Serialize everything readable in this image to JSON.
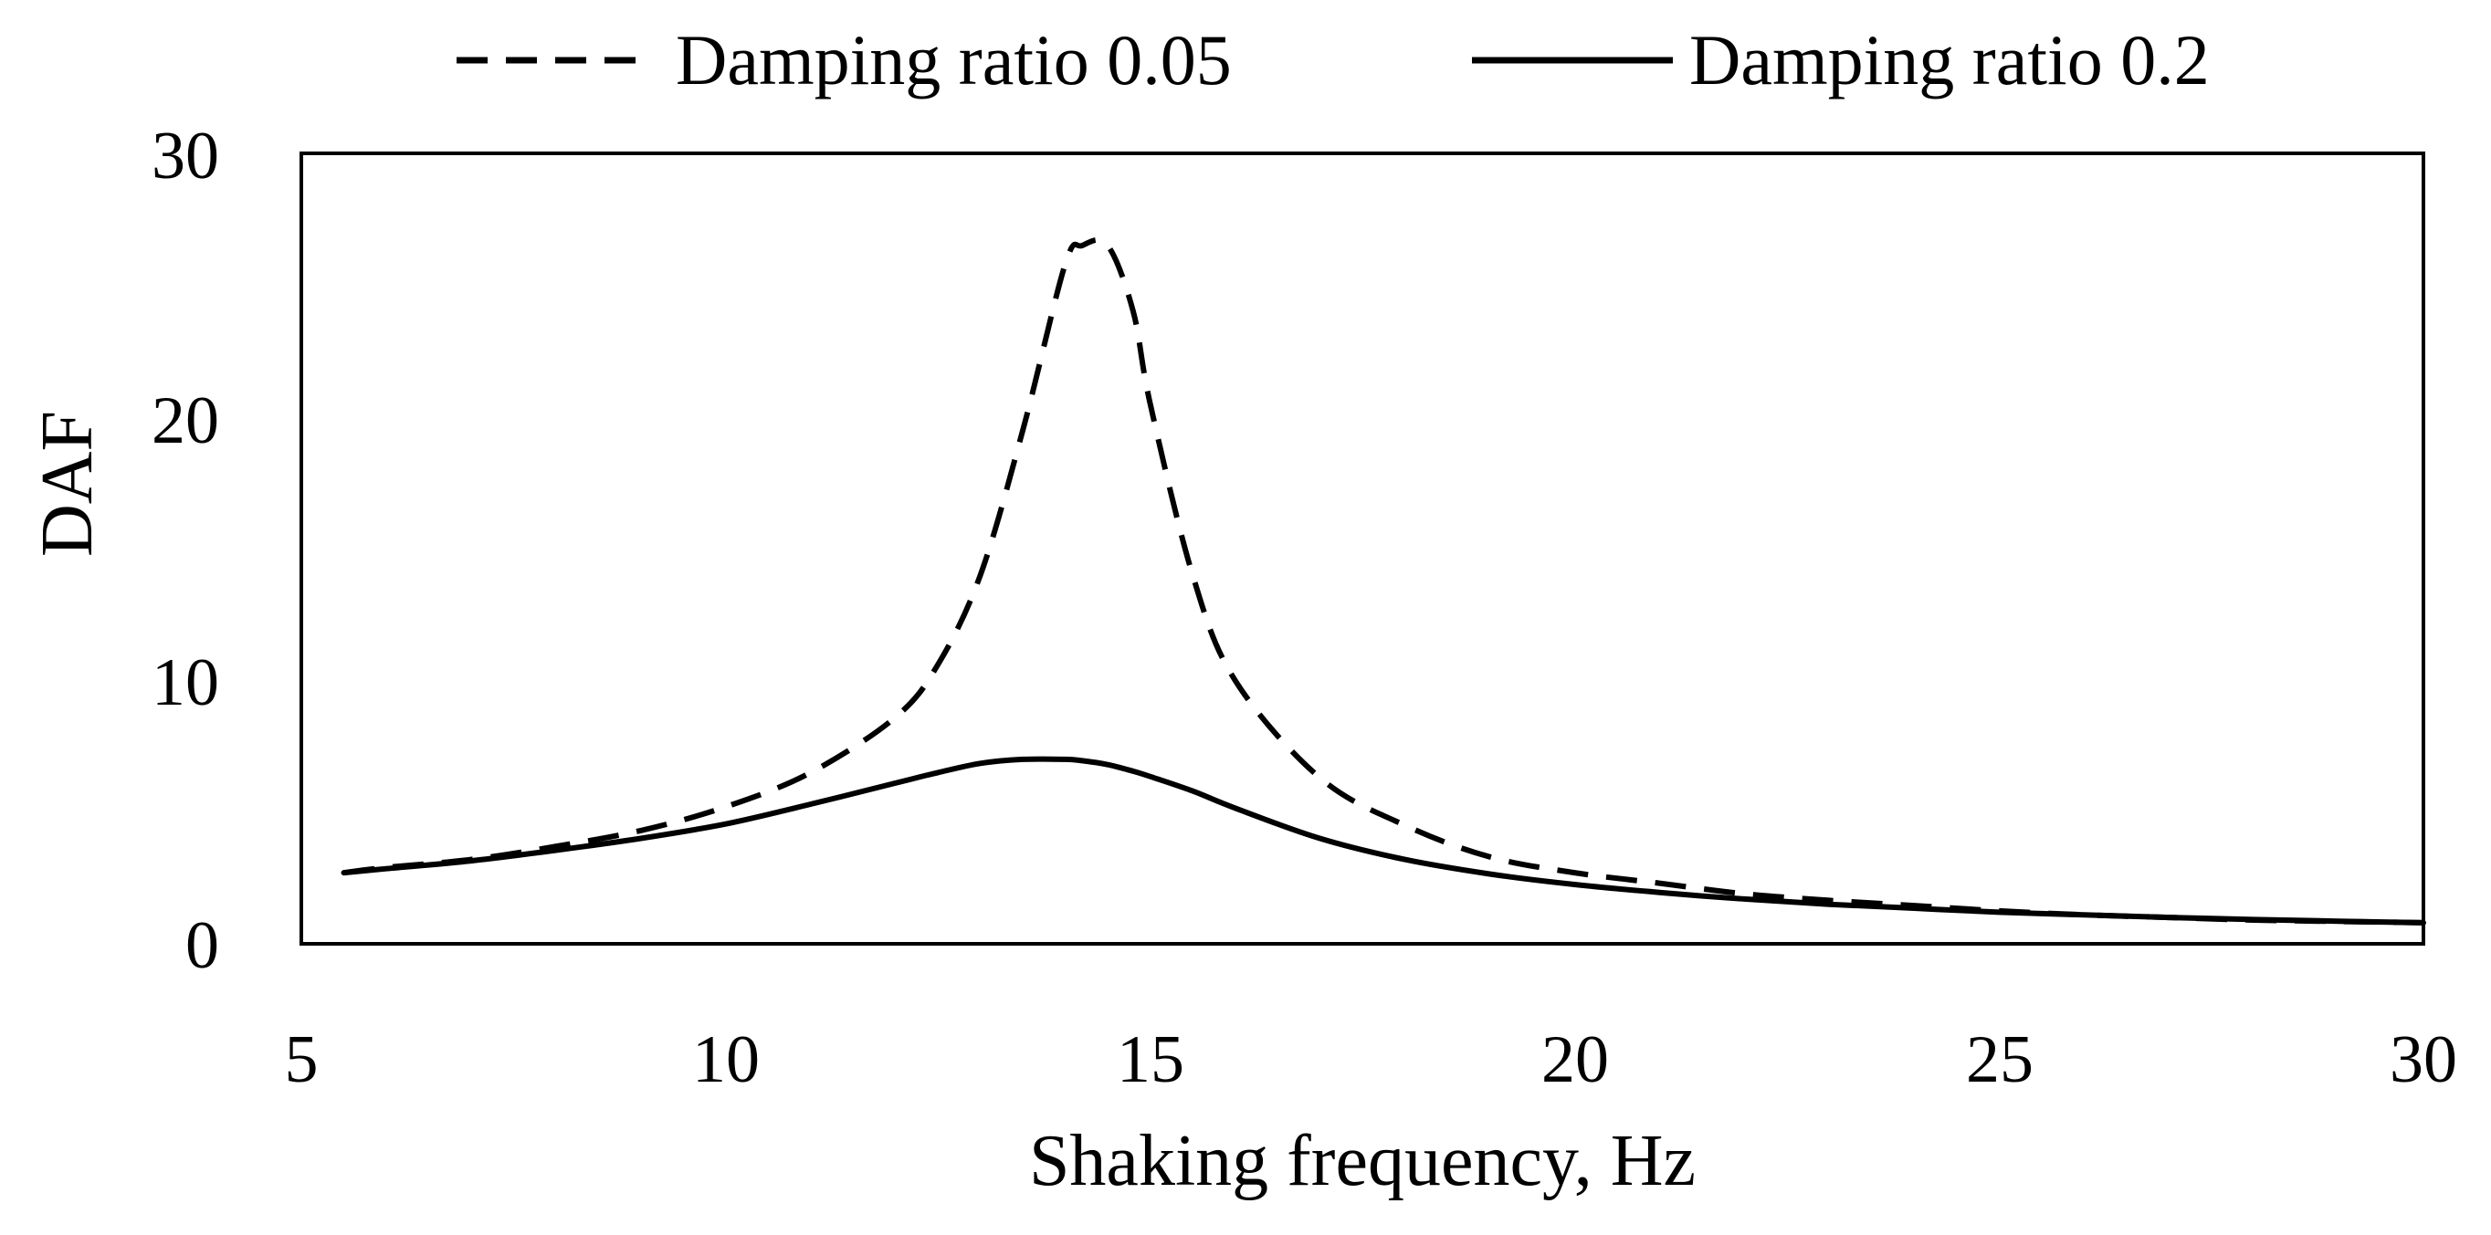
{
  "chart_data": {
    "type": "line",
    "title": "",
    "xlabel": "Shaking frequency, Hz",
    "ylabel": "DAF",
    "xlim": [
      5,
      30
    ],
    "ylim": [
      0,
      30
    ],
    "xticks": [
      "5",
      "10",
      "15",
      "20",
      "25",
      "30"
    ],
    "yticks": [
      "0",
      "10",
      "20",
      "30"
    ],
    "legend_position": "top",
    "grid": false,
    "x": [
      5.5,
      6,
      7,
      8,
      9,
      10,
      11,
      12,
      12.5,
      13,
      13.5,
      14,
      14.2,
      14.5,
      14.8,
      15,
      15.5,
      16,
      17,
      18,
      19,
      20,
      21,
      22,
      23,
      24,
      25,
      26,
      27,
      28,
      29,
      30
    ],
    "series": [
      {
        "name": "Damping ratio 0.05",
        "style": "dashed",
        "color": "#000000",
        "values": [
          2.7,
          2.9,
          3.2,
          3.7,
          4.3,
          5.2,
          6.5,
          8.6,
          10.6,
          14.0,
          19.5,
          25.8,
          26.5,
          26.5,
          24.0,
          20.5,
          14.0,
          10.0,
          6.3,
          4.5,
          3.3,
          2.7,
          2.3,
          1.9,
          1.65,
          1.45,
          1.25,
          1.1,
          1.0,
          0.9,
          0.85,
          0.8
        ]
      },
      {
        "name": "Damping ratio 0.2",
        "style": "solid",
        "color": "#000000",
        "values": [
          2.7,
          2.85,
          3.15,
          3.55,
          4.0,
          4.55,
          5.3,
          6.1,
          6.5,
          6.85,
          7.0,
          7.0,
          6.95,
          6.8,
          6.55,
          6.35,
          5.8,
          5.15,
          4.0,
          3.2,
          2.65,
          2.25,
          1.95,
          1.7,
          1.5,
          1.35,
          1.2,
          1.1,
          1.0,
          0.92,
          0.86,
          0.8
        ]
      }
    ]
  }
}
